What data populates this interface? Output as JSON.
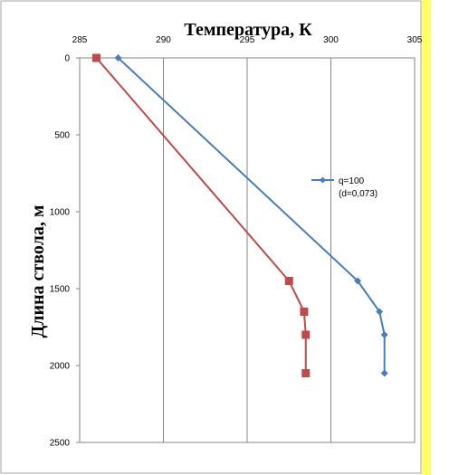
{
  "chart_data": {
    "type": "line",
    "title": "",
    "xlabel": "Температура, К",
    "ylabel": "Длина ствола, м",
    "x_axis_position": "top",
    "y_axis_inverted": true,
    "xlim": [
      285,
      305
    ],
    "ylim": [
      0,
      2500
    ],
    "xticks": [
      "285",
      "290",
      "295",
      "300",
      "305"
    ],
    "yticks": [
      "0",
      "500",
      "1000",
      "1500",
      "2000",
      "2500"
    ],
    "grid": "vertical",
    "legend_position": "right-middle",
    "series": [
      {
        "name": "q=100 (d=0,073)",
        "color": "#4a7ebb",
        "marker": "diamond",
        "x": [
          287.3,
          301.6,
          302.9,
          303.2,
          303.2
        ],
        "y": [
          0,
          1450,
          1650,
          1800,
          2050
        ]
      },
      {
        "color": "#be4b48",
        "marker": "square",
        "x": [
          286.0,
          297.5,
          298.4,
          298.5,
          298.5
        ],
        "y": [
          0,
          1450,
          1650,
          1800,
          2050
        ]
      }
    ],
    "legend": {
      "line1": "q=100",
      "line2": "(d=0,073)"
    },
    "colors": {
      "highlight_bar": "#ffff66"
    }
  }
}
